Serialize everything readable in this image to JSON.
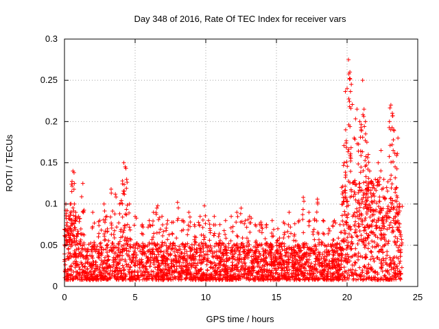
{
  "chart_data": {
    "type": "scatter",
    "title": "Day 348 of 2016, Rate Of TEC Index for receiver vars",
    "xlabel": "GPS time / hours",
    "ylabel": "ROTI / TECUs",
    "xlim": [
      0,
      25
    ],
    "ylim": [
      0,
      0.3
    ],
    "x_ticks": [
      0,
      5,
      10,
      15,
      20,
      25
    ],
    "x_tick_labels": [
      "0",
      "5",
      "10",
      "15",
      "20",
      "25"
    ],
    "y_ticks": [
      0,
      0.05,
      0.1,
      0.15,
      0.2,
      0.25,
      0.3
    ],
    "y_tick_labels": [
      "0",
      "0.05",
      "0.1",
      "0.15",
      "0.2",
      "0.25",
      "0.3"
    ],
    "grid": true,
    "legend": "none",
    "marker": "plus",
    "color": "#ff0000",
    "series": [
      {
        "x": [
          0.1,
          0.2,
          0.3,
          0.4,
          0.5,
          0.6,
          0.7,
          0.8,
          1.0,
          1.3,
          2.0,
          2.5,
          2.8,
          3.0,
          3.3,
          3.6,
          3.9,
          4.1,
          4.2,
          4.3,
          4.4,
          4.6,
          5.0,
          5.5,
          6.0,
          6.3,
          6.6,
          6.9,
          7.3,
          7.7,
          8.0,
          8.4,
          8.8,
          9.2,
          9.6,
          9.9,
          10.2,
          10.6,
          11.0,
          11.4,
          11.8,
          12.2,
          12.5,
          12.8,
          13.1,
          13.5,
          13.9,
          14.3,
          14.7,
          15.1,
          15.5,
          15.9,
          16.3,
          16.6,
          16.9,
          17.3,
          17.7,
          17.9,
          18.3,
          18.7,
          19.1,
          19.5,
          19.7,
          19.8,
          19.9,
          20.0,
          20.1,
          20.2,
          20.3,
          20.5,
          20.7,
          20.9,
          21.0,
          21.1,
          21.2,
          21.3,
          21.4,
          21.5,
          21.6,
          21.8,
          22.0,
          22.2,
          22.4,
          22.6,
          22.8,
          23.0,
          23.1,
          23.2,
          23.3,
          23.4,
          23.5,
          23.6,
          23.7
        ],
        "y": [
          0.1,
          0.092,
          0.085,
          0.1,
          0.124,
          0.14,
          0.1,
          0.09,
          0.085,
          0.125,
          0.09,
          0.08,
          0.1,
          0.085,
          0.118,
          0.112,
          0.1,
          0.128,
          0.15,
          0.145,
          0.13,
          0.1,
          0.085,
          0.075,
          0.08,
          0.09,
          0.098,
          0.085,
          0.08,
          0.078,
          0.102,
          0.08,
          0.09,
          0.075,
          0.085,
          0.098,
          0.08,
          0.085,
          0.075,
          0.08,
          0.085,
          0.09,
          0.095,
          0.08,
          0.085,
          0.075,
          0.078,
          0.075,
          0.08,
          0.07,
          0.078,
          0.09,
          0.076,
          0.08,
          0.108,
          0.09,
          0.082,
          0.106,
          0.08,
          0.07,
          0.08,
          0.075,
          0.1,
          0.15,
          0.19,
          0.24,
          0.275,
          0.26,
          0.245,
          0.18,
          0.215,
          0.2,
          0.19,
          0.25,
          0.215,
          0.2,
          0.175,
          0.16,
          0.14,
          0.12,
          0.13,
          0.15,
          0.165,
          0.13,
          0.12,
          0.2,
          0.22,
          0.21,
          0.19,
          0.145,
          0.12,
          0.18,
          0.1
        ]
      }
    ]
  }
}
